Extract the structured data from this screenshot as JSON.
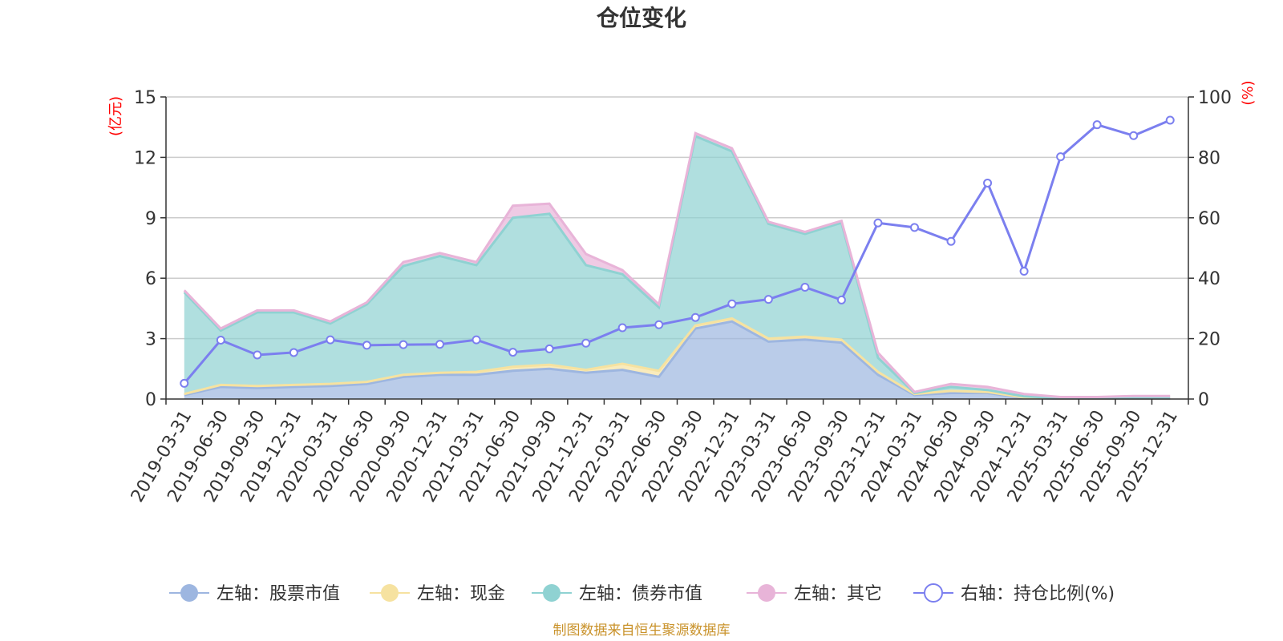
{
  "chart_data": {
    "type": "area",
    "title": "仓位变化",
    "left_unit": "(亿元)",
    "right_unit": "(%)",
    "source": "制图数据来自恒生聚源数据库",
    "ylim_left": [
      0,
      15
    ],
    "ylim_right": [
      0,
      100
    ],
    "left_ticks": [
      "0",
      "3",
      "6",
      "9",
      "12",
      "15"
    ],
    "right_ticks": [
      "0",
      "20",
      "40",
      "60",
      "80",
      "100"
    ],
    "categories": [
      "2019-03-31",
      "2019-06-30",
      "2019-09-30",
      "2019-12-31",
      "2020-03-31",
      "2020-06-30",
      "2020-09-30",
      "2020-12-31",
      "2021-03-31",
      "2021-06-30",
      "2021-09-30",
      "2021-12-31",
      "2022-03-31",
      "2022-06-30",
      "2022-09-30",
      "2022-12-31",
      "2023-03-31",
      "2023-06-30",
      "2023-09-30",
      "2023-12-31",
      "2024-03-31",
      "2024-06-30",
      "2024-09-30",
      "2024-12-31",
      "2025-03-31",
      "2025-06-30",
      "2025-09-30",
      "2025-12-31"
    ],
    "series": [
      {
        "name": "左轴：股票市值",
        "axis": "left",
        "stack": true,
        "color": "#9db6e0",
        "values": [
          0.2,
          0.6,
          0.55,
          0.6,
          0.65,
          0.75,
          1.1,
          1.2,
          1.2,
          1.4,
          1.5,
          1.3,
          1.45,
          1.1,
          3.5,
          3.85,
          2.85,
          2.95,
          2.8,
          1.2,
          0.2,
          0.3,
          0.3,
          0.05,
          0.02,
          0.02,
          0.02,
          0.02
        ]
      },
      {
        "name": "左轴：现金",
        "axis": "left",
        "stack": true,
        "color": "#f6e2a0",
        "values": [
          0.05,
          0.1,
          0.1,
          0.1,
          0.1,
          0.1,
          0.1,
          0.1,
          0.15,
          0.2,
          0.2,
          0.15,
          0.3,
          0.3,
          0.15,
          0.15,
          0.15,
          0.15,
          0.15,
          0.15,
          0.05,
          0.1,
          0.05,
          0.03,
          0.01,
          0.01,
          0.01,
          0.01
        ]
      },
      {
        "name": "左轴：债券市值",
        "axis": "left",
        "stack": true,
        "color": "#8fd2d2",
        "values": [
          5.05,
          2.7,
          3.65,
          3.6,
          3.0,
          3.85,
          5.4,
          5.8,
          5.3,
          7.4,
          7.5,
          5.2,
          4.45,
          3.15,
          9.4,
          8.3,
          5.7,
          5.1,
          5.8,
          0.7,
          0.05,
          0.2,
          0.1,
          0.05,
          0.02,
          0.02,
          0.02,
          0.02
        ]
      },
      {
        "name": "左轴：其它",
        "axis": "left",
        "stack": true,
        "color": "#e8b4d8",
        "values": [
          0.1,
          0.1,
          0.1,
          0.1,
          0.1,
          0.1,
          0.2,
          0.15,
          0.15,
          0.6,
          0.5,
          0.55,
          0.2,
          0.15,
          0.15,
          0.15,
          0.1,
          0.1,
          0.1,
          0.25,
          0.05,
          0.15,
          0.15,
          0.12,
          0.05,
          0.05,
          0.1,
          0.1
        ]
      },
      {
        "name": "右轴：持仓比例(%)",
        "axis": "right",
        "stack": false,
        "color": "#7b7fef",
        "values": [
          5.2,
          19.5,
          14.6,
          15.4,
          19.6,
          17.8,
          18.0,
          18.1,
          19.6,
          15.5,
          16.6,
          18.5,
          23.6,
          24.6,
          27.0,
          31.5,
          33.0,
          37.0,
          32.8,
          58.3,
          56.8,
          52.2,
          71.5,
          42.3,
          80.2,
          90.8,
          87.2,
          92.3
        ]
      }
    ]
  }
}
